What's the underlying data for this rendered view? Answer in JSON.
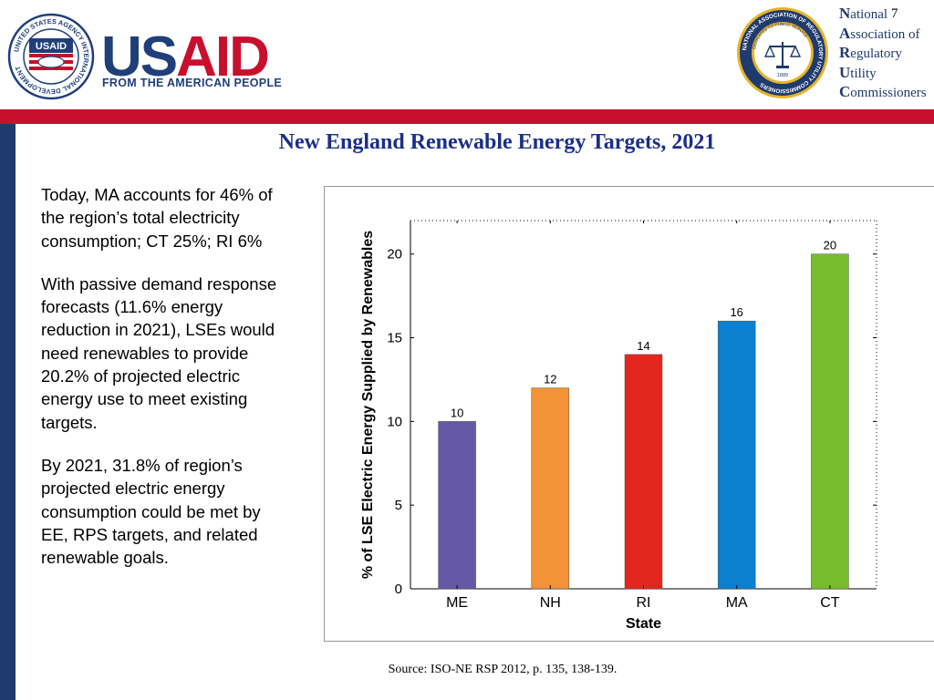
{
  "header": {
    "usaid": {
      "wordmark_us": "US",
      "wordmark_aid": "AID",
      "tagline": "FROM THE AMERICAN PEOPLE",
      "seal_lettering": "UNITED STATES AGENCY INTERNATIONAL DEVELOPMENT",
      "seal_badge": "USAID"
    },
    "naruc": {
      "lines": [
        {
          "cap": "N",
          "rest": "ational"
        },
        {
          "cap": "A",
          "rest": "ssociation of"
        },
        {
          "cap": "R",
          "rest": "egulatory"
        },
        {
          "cap": "U",
          "rest": "tility"
        },
        {
          "cap": "C",
          "rest": "ommissioners"
        }
      ],
      "seal_lettering": "NATIONAL ASSOCIATION OF REGULATORY UTILITY COMMISSIONERS",
      "seal_motto": "DEDICATED TO PUBLIC SERVICE",
      "seal_year": "1889"
    },
    "page_number": "7"
  },
  "colors": {
    "band_red": "#c8102e",
    "bar_navy": "#1f3a6e",
    "title_blue": "#1a2f8a"
  },
  "slide": {
    "title": "New England Renewable Energy Targets, 2021",
    "paragraphs": [
      "Today, MA accounts for 46% of the region’s total electricity consumption; CT 25%; RI 6%",
      "With passive demand response forecasts (11.6% energy reduction in 2021), LSEs would need renewables to provide 20.2% of projected electric energy use to meet existing targets.",
      "By 2021, 31.8% of region’s projected electric energy consumption could be met by EE, RPS targets, and related renewable goals."
    ],
    "source": "Source: ISO-NE RSP 2012, p. 135, 138-139."
  },
  "chart_data": {
    "type": "bar",
    "title": "",
    "xlabel": "State",
    "ylabel": "% of LSE Electric Energy Supplied by Renewables",
    "categories": [
      "ME",
      "NH",
      "RI",
      "MA",
      "CT"
    ],
    "values": [
      10,
      12,
      14,
      16,
      20
    ],
    "data_labels": [
      "10",
      "12",
      "14",
      "16",
      "20"
    ],
    "bar_colors": [
      "#6558a6",
      "#f39237",
      "#e3261d",
      "#0b80cf",
      "#77bd2e"
    ],
    "ylim": [
      0,
      22
    ],
    "yticks": [
      0,
      5,
      10,
      15,
      20
    ],
    "grid": false,
    "legend": "none"
  }
}
